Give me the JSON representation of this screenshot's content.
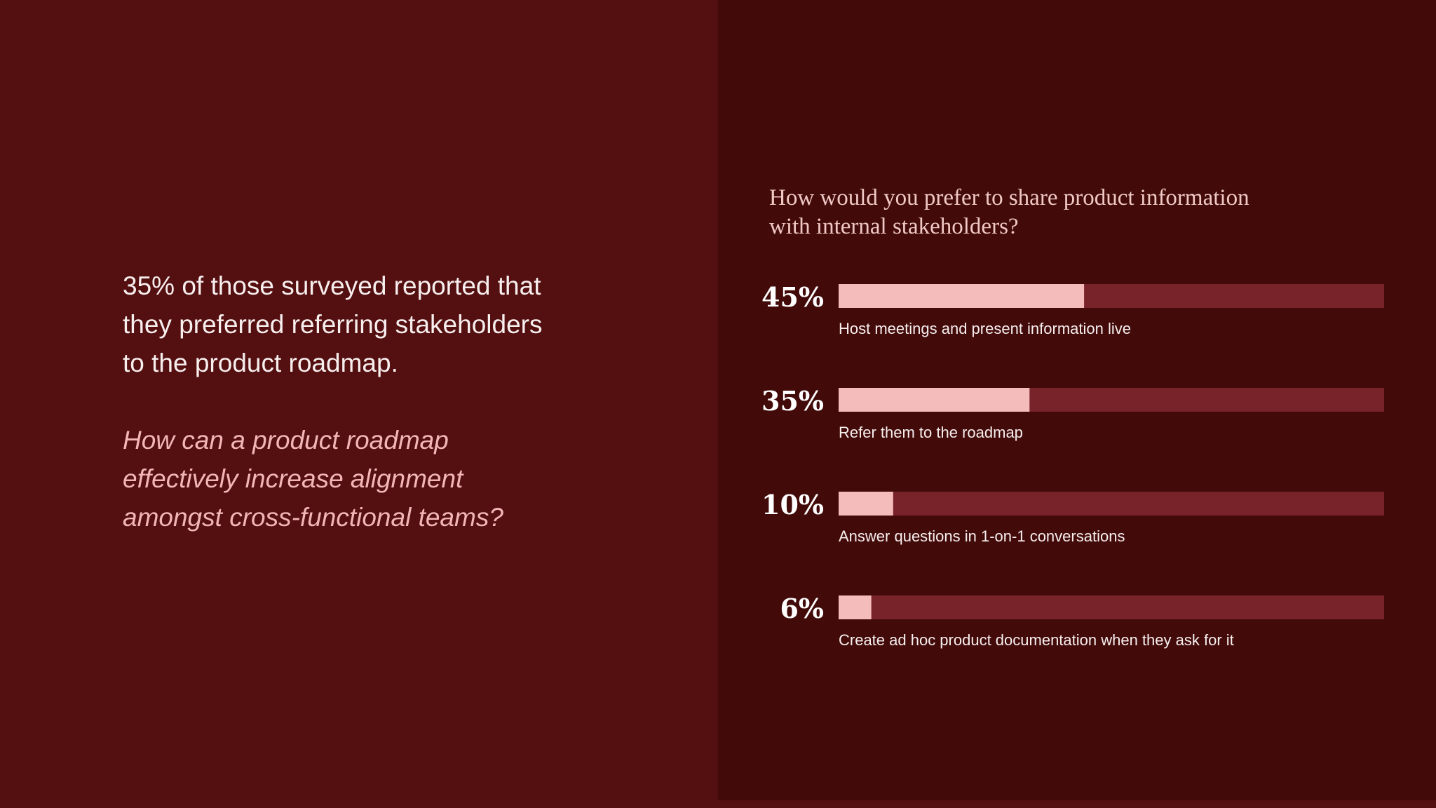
{
  "left": {
    "statement_lines": [
      "35% of those surveyed reported that",
      "they preferred referring stakeholders",
      "to the product roadmap."
    ],
    "question_lines": [
      "How can a product roadmap",
      "effectively increase alignment",
      "amongst cross-functional teams?"
    ]
  },
  "colors": {
    "left_bg": "#540f10",
    "right_bg": "#420b0a",
    "bar_fill": "#f4bcbb",
    "bar_track": "#78222a"
  },
  "chart_data": {
    "type": "bar",
    "orientation": "horizontal",
    "title_lines": [
      "How would you prefer to share product information",
      "with internal stakeholders?"
    ],
    "categories": [
      "Host meetings and present information live",
      "Refer them to the roadmap",
      "Answer questions in 1-on-1 conversations",
      "Create ad hoc product documentation when they ask for it"
    ],
    "value_labels": [
      "45%",
      "35%",
      "10%",
      "6%"
    ],
    "values": [
      45,
      35,
      10,
      6
    ],
    "xlim": [
      0,
      100
    ],
    "grid": false,
    "legend": "none"
  }
}
